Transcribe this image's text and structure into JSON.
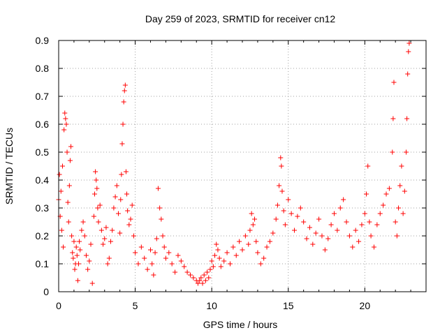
{
  "chart_data": {
    "type": "scatter",
    "title": "Day 259 of 2023, SRMTID for receiver cn12",
    "xlabel": "GPS time / hours",
    "ylabel": "SRMTID / TECUs",
    "xlim": [
      0,
      24
    ],
    "ylim": [
      0,
      0.9
    ],
    "xticks": [
      0,
      5,
      10,
      15,
      20
    ],
    "yticks": [
      0,
      0.1,
      0.2,
      0.3,
      0.4,
      0.5,
      0.6,
      0.7,
      0.8,
      0.9
    ],
    "ytick_labels": [
      "0",
      "0.1",
      "0.2",
      "0.3",
      "0.4",
      "0.5",
      "0.6",
      "0.7",
      "0.8",
      "0.9"
    ],
    "grid": true,
    "marker": "+",
    "series": [
      {
        "name": "SRMTID",
        "color": "#ff0000",
        "points": [
          [
            0.0,
            0.33
          ],
          [
            0.05,
            0.42
          ],
          [
            0.1,
            0.27
          ],
          [
            0.15,
            0.36
          ],
          [
            0.2,
            0.22
          ],
          [
            0.25,
            0.45
          ],
          [
            0.3,
            0.16
          ],
          [
            0.35,
            0.58
          ],
          [
            0.4,
            0.64
          ],
          [
            0.45,
            0.62
          ],
          [
            0.5,
            0.6
          ],
          [
            0.55,
            0.5
          ],
          [
            0.6,
            0.32
          ],
          [
            0.65,
            0.25
          ],
          [
            0.7,
            0.38
          ],
          [
            0.75,
            0.47
          ],
          [
            0.8,
            0.52
          ],
          [
            0.85,
            0.2
          ],
          [
            0.9,
            0.14
          ],
          [
            0.95,
            0.12
          ],
          [
            1.0,
            0.18
          ],
          [
            1.05,
            0.08
          ],
          [
            1.1,
            0.1
          ],
          [
            1.15,
            0.16
          ],
          [
            1.2,
            0.13
          ],
          [
            1.25,
            0.04
          ],
          [
            1.3,
            0.1
          ],
          [
            1.35,
            0.18
          ],
          [
            1.4,
            0.15
          ],
          [
            1.5,
            0.22
          ],
          [
            1.6,
            0.25
          ],
          [
            1.7,
            0.2
          ],
          [
            1.8,
            0.13
          ],
          [
            1.9,
            0.08
          ],
          [
            2.0,
            0.11
          ],
          [
            2.1,
            0.17
          ],
          [
            2.2,
            0.03
          ],
          [
            2.3,
            0.27
          ],
          [
            2.35,
            0.35
          ],
          [
            2.4,
            0.43
          ],
          [
            2.45,
            0.4
          ],
          [
            2.5,
            0.37
          ],
          [
            2.55,
            0.3
          ],
          [
            2.6,
            0.25
          ],
          [
            2.7,
            0.31
          ],
          [
            2.8,
            0.22
          ],
          [
            2.9,
            0.17
          ],
          [
            3.0,
            0.19
          ],
          [
            3.1,
            0.23
          ],
          [
            3.2,
            0.1
          ],
          [
            3.3,
            0.12
          ],
          [
            3.4,
            0.18
          ],
          [
            3.5,
            0.22
          ],
          [
            3.6,
            0.3
          ],
          [
            3.7,
            0.34
          ],
          [
            3.8,
            0.38
          ],
          [
            3.9,
            0.28
          ],
          [
            4.0,
            0.21
          ],
          [
            4.05,
            0.33
          ],
          [
            4.1,
            0.42
          ],
          [
            4.15,
            0.53
          ],
          [
            4.2,
            0.6
          ],
          [
            4.25,
            0.68
          ],
          [
            4.3,
            0.72
          ],
          [
            4.35,
            0.74
          ],
          [
            4.4,
            0.43
          ],
          [
            4.45,
            0.35
          ],
          [
            4.5,
            0.29
          ],
          [
            4.6,
            0.24
          ],
          [
            4.7,
            0.26
          ],
          [
            4.8,
            0.31
          ],
          [
            4.9,
            0.2
          ],
          [
            5.0,
            0.14
          ],
          [
            5.2,
            0.1
          ],
          [
            5.4,
            0.16
          ],
          [
            5.6,
            0.12
          ],
          [
            5.8,
            0.08
          ],
          [
            6.0,
            0.15
          ],
          [
            6.1,
            0.1
          ],
          [
            6.2,
            0.06
          ],
          [
            6.3,
            0.14
          ],
          [
            6.4,
            0.19
          ],
          [
            6.5,
            0.37
          ],
          [
            6.6,
            0.3
          ],
          [
            6.7,
            0.26
          ],
          [
            6.8,
            0.2
          ],
          [
            6.9,
            0.16
          ],
          [
            7.0,
            0.12
          ],
          [
            7.2,
            0.14
          ],
          [
            7.4,
            0.1
          ],
          [
            7.6,
            0.07
          ],
          [
            7.8,
            0.13
          ],
          [
            8.0,
            0.11
          ],
          [
            8.2,
            0.09
          ],
          [
            8.4,
            0.07
          ],
          [
            8.6,
            0.06
          ],
          [
            8.8,
            0.05
          ],
          [
            9.0,
            0.04
          ],
          [
            9.1,
            0.03
          ],
          [
            9.2,
            0.04
          ],
          [
            9.3,
            0.05
          ],
          [
            9.4,
            0.03
          ],
          [
            9.5,
            0.06
          ],
          [
            9.6,
            0.04
          ],
          [
            9.7,
            0.07
          ],
          [
            9.8,
            0.05
          ],
          [
            9.9,
            0.08
          ],
          [
            10.0,
            0.11
          ],
          [
            10.1,
            0.09
          ],
          [
            10.2,
            0.13
          ],
          [
            10.3,
            0.17
          ],
          [
            10.4,
            0.15
          ],
          [
            10.5,
            0.12
          ],
          [
            10.6,
            0.09
          ],
          [
            10.8,
            0.11
          ],
          [
            11.0,
            0.14
          ],
          [
            11.2,
            0.1
          ],
          [
            11.4,
            0.16
          ],
          [
            11.6,
            0.13
          ],
          [
            11.8,
            0.18
          ],
          [
            12.0,
            0.15
          ],
          [
            12.2,
            0.2
          ],
          [
            12.4,
            0.17
          ],
          [
            12.5,
            0.22
          ],
          [
            12.6,
            0.28
          ],
          [
            12.7,
            0.24
          ],
          [
            12.8,
            0.26
          ],
          [
            12.9,
            0.18
          ],
          [
            13.0,
            0.14
          ],
          [
            13.2,
            0.1
          ],
          [
            13.4,
            0.12
          ],
          [
            13.6,
            0.16
          ],
          [
            13.8,
            0.18
          ],
          [
            14.0,
            0.21
          ],
          [
            14.2,
            0.26
          ],
          [
            14.3,
            0.31
          ],
          [
            14.4,
            0.38
          ],
          [
            14.5,
            0.48
          ],
          [
            14.55,
            0.45
          ],
          [
            14.6,
            0.36
          ],
          [
            14.7,
            0.29
          ],
          [
            14.8,
            0.24
          ],
          [
            15.0,
            0.33
          ],
          [
            15.2,
            0.28
          ],
          [
            15.4,
            0.22
          ],
          [
            15.6,
            0.27
          ],
          [
            15.8,
            0.3
          ],
          [
            16.0,
            0.25
          ],
          [
            16.2,
            0.19
          ],
          [
            16.4,
            0.23
          ],
          [
            16.6,
            0.17
          ],
          [
            16.8,
            0.21
          ],
          [
            17.0,
            0.26
          ],
          [
            17.2,
            0.2
          ],
          [
            17.4,
            0.15
          ],
          [
            17.6,
            0.19
          ],
          [
            17.8,
            0.24
          ],
          [
            18.0,
            0.28
          ],
          [
            18.2,
            0.22
          ],
          [
            18.4,
            0.3
          ],
          [
            18.6,
            0.33
          ],
          [
            18.8,
            0.25
          ],
          [
            19.0,
            0.2
          ],
          [
            19.2,
            0.16
          ],
          [
            19.4,
            0.22
          ],
          [
            19.6,
            0.18
          ],
          [
            19.8,
            0.24
          ],
          [
            20.0,
            0.28
          ],
          [
            20.1,
            0.35
          ],
          [
            20.2,
            0.45
          ],
          [
            20.3,
            0.25
          ],
          [
            20.4,
            0.2
          ],
          [
            20.6,
            0.16
          ],
          [
            20.8,
            0.24
          ],
          [
            21.0,
            0.28
          ],
          [
            21.2,
            0.31
          ],
          [
            21.4,
            0.35
          ],
          [
            21.6,
            0.37
          ],
          [
            21.8,
            0.5
          ],
          [
            21.85,
            0.62
          ],
          [
            21.9,
            0.75
          ],
          [
            22.0,
            0.25
          ],
          [
            22.1,
            0.2
          ],
          [
            22.2,
            0.3
          ],
          [
            22.3,
            0.38
          ],
          [
            22.4,
            0.45
          ],
          [
            22.5,
            0.28
          ],
          [
            22.6,
            0.36
          ],
          [
            22.7,
            0.5
          ],
          [
            22.75,
            0.62
          ],
          [
            22.8,
            0.78
          ],
          [
            22.85,
            0.86
          ],
          [
            22.9,
            0.89
          ]
        ]
      }
    ]
  }
}
